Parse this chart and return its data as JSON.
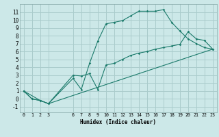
{
  "xlabel": "Humidex (Indice chaleur)",
  "bg_color": "#cce8e8",
  "grid_color": "#aacccc",
  "line_color": "#1a7a6a",
  "xlim": [
    -0.5,
    23.5
  ],
  "ylim": [
    -1.7,
    12.0
  ],
  "xticks": [
    0,
    1,
    2,
    3,
    6,
    7,
    8,
    9,
    10,
    11,
    12,
    13,
    14,
    15,
    16,
    17,
    18,
    19,
    20,
    21,
    22,
    23
  ],
  "yticks": [
    -1,
    0,
    1,
    2,
    3,
    4,
    5,
    6,
    7,
    8,
    9,
    10,
    11
  ],
  "line1_x": [
    0,
    1,
    2,
    3,
    6,
    7,
    8,
    9,
    10,
    11,
    12,
    13,
    14,
    15,
    16,
    17,
    18,
    19,
    20,
    21,
    22,
    23
  ],
  "line1_y": [
    1.0,
    0.0,
    -0.2,
    -0.6,
    2.6,
    1.2,
    4.5,
    7.3,
    9.5,
    9.7,
    9.9,
    10.5,
    11.1,
    11.1,
    11.1,
    11.3,
    9.7,
    8.6,
    7.6,
    7.0,
    6.5,
    6.3
  ],
  "line2_x": [
    0,
    1,
    2,
    3,
    6,
    7,
    8,
    9,
    10,
    11,
    12,
    13,
    14,
    15,
    16,
    17,
    18,
    19,
    20,
    21,
    22,
    23
  ],
  "line2_y": [
    1.0,
    0.0,
    -0.2,
    -0.6,
    3.0,
    2.9,
    3.2,
    1.2,
    4.3,
    4.5,
    5.0,
    5.5,
    5.8,
    6.0,
    6.3,
    6.5,
    6.7,
    6.9,
    8.5,
    7.6,
    7.4,
    6.3
  ],
  "line3_x": [
    0,
    2,
    3,
    23
  ],
  "line3_y": [
    1.0,
    -0.2,
    -0.6,
    6.3
  ]
}
